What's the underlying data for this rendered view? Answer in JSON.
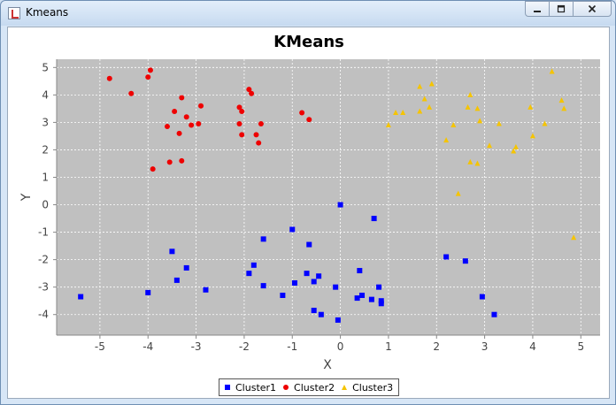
{
  "window": {
    "title": "Kmeans",
    "controls": {
      "minimize_icon": "minimize-icon",
      "maximize_icon": "maximize-icon",
      "close_icon": "close-icon"
    }
  },
  "chart_data": {
    "type": "scatter",
    "title": "KMeans",
    "xlabel": "X",
    "ylabel": "Y",
    "xlim": [
      -5.9,
      5.4
    ],
    "ylim": [
      -4.75,
      5.3
    ],
    "xticks": [
      -5,
      -4,
      -3,
      -2,
      -1,
      0,
      1,
      2,
      3,
      4,
      5
    ],
    "yticks": [
      -4,
      -3,
      -2,
      -1,
      0,
      1,
      2,
      3,
      4,
      5
    ],
    "grid": true,
    "plot_background": "#c0c0c0",
    "legend_position": "bottom",
    "series": [
      {
        "name": "Cluster1",
        "marker": "square",
        "color": "#0000ff",
        "points": [
          [
            -5.4,
            -3.35
          ],
          [
            -4.0,
            -3.2
          ],
          [
            -3.5,
            -1.7
          ],
          [
            -3.4,
            -2.75
          ],
          [
            -3.2,
            -2.3
          ],
          [
            -2.8,
            -3.1
          ],
          [
            -1.9,
            -2.5
          ],
          [
            -1.8,
            -2.2
          ],
          [
            -1.6,
            -1.25
          ],
          [
            -1.6,
            -2.95
          ],
          [
            -1.2,
            -3.3
          ],
          [
            -1.0,
            -0.9
          ],
          [
            -0.95,
            -2.85
          ],
          [
            -0.7,
            -2.5
          ],
          [
            -0.65,
            -1.45
          ],
          [
            -0.55,
            -3.85
          ],
          [
            -0.55,
            -2.8
          ],
          [
            -0.45,
            -2.6
          ],
          [
            -0.4,
            -4.0
          ],
          [
            -0.1,
            -3.0
          ],
          [
            -0.05,
            -4.2
          ],
          [
            0.0,
            0.0
          ],
          [
            0.35,
            -3.4
          ],
          [
            0.4,
            -2.4
          ],
          [
            0.45,
            -3.3
          ],
          [
            0.65,
            -3.45
          ],
          [
            0.7,
            -0.5
          ],
          [
            0.8,
            -3.0
          ],
          [
            0.85,
            -3.5
          ],
          [
            0.85,
            -3.6
          ],
          [
            2.2,
            -1.9
          ],
          [
            2.6,
            -2.05
          ],
          [
            2.95,
            -3.35
          ],
          [
            3.2,
            -4.0
          ]
        ]
      },
      {
        "name": "Cluster2",
        "marker": "circle",
        "color": "#ee0000",
        "points": [
          [
            -4.8,
            4.6
          ],
          [
            -4.35,
            4.05
          ],
          [
            -4.0,
            4.65
          ],
          [
            -3.95,
            4.9
          ],
          [
            -3.9,
            1.3
          ],
          [
            -3.6,
            2.85
          ],
          [
            -3.55,
            1.55
          ],
          [
            -3.45,
            3.4
          ],
          [
            -3.35,
            2.6
          ],
          [
            -3.3,
            3.9
          ],
          [
            -3.3,
            1.6
          ],
          [
            -3.2,
            3.2
          ],
          [
            -3.1,
            2.9
          ],
          [
            -2.95,
            2.95
          ],
          [
            -2.9,
            3.6
          ],
          [
            -2.1,
            3.55
          ],
          [
            -2.1,
            2.95
          ],
          [
            -2.05,
            3.4
          ],
          [
            -2.05,
            2.55
          ],
          [
            -1.9,
            4.2
          ],
          [
            -1.85,
            4.05
          ],
          [
            -1.75,
            2.55
          ],
          [
            -1.7,
            2.25
          ],
          [
            -1.65,
            2.95
          ],
          [
            -0.8,
            3.35
          ],
          [
            -0.65,
            3.1
          ]
        ]
      },
      {
        "name": "Cluster3",
        "marker": "triangle",
        "color": "#f5c400",
        "points": [
          [
            1.0,
            2.9
          ],
          [
            1.15,
            3.35
          ],
          [
            1.3,
            3.35
          ],
          [
            1.65,
            3.4
          ],
          [
            1.65,
            4.3
          ],
          [
            1.75,
            3.85
          ],
          [
            1.85,
            3.55
          ],
          [
            1.9,
            4.4
          ],
          [
            2.2,
            2.35
          ],
          [
            2.35,
            2.9
          ],
          [
            2.45,
            0.4
          ],
          [
            2.65,
            3.55
          ],
          [
            2.7,
            1.55
          ],
          [
            2.7,
            4.0
          ],
          [
            2.85,
            3.5
          ],
          [
            2.85,
            1.5
          ],
          [
            2.9,
            3.05
          ],
          [
            3.1,
            2.15
          ],
          [
            3.3,
            2.95
          ],
          [
            3.6,
            1.95
          ],
          [
            3.65,
            2.1
          ],
          [
            3.95,
            3.55
          ],
          [
            4.0,
            2.5
          ],
          [
            4.25,
            2.95
          ],
          [
            4.4,
            4.85
          ],
          [
            4.6,
            3.8
          ],
          [
            4.65,
            3.5
          ],
          [
            4.85,
            -1.2
          ]
        ]
      }
    ]
  }
}
